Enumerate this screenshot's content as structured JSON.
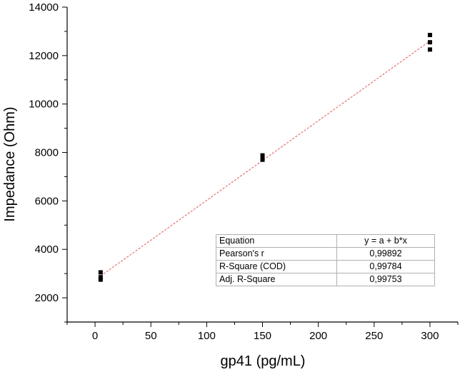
{
  "chart_data": {
    "type": "scatter",
    "xlabel": "gp41 (pg/mL)",
    "ylabel": "Impedance (Ohm)",
    "xlim": [
      -25,
      325
    ],
    "ylim": [
      1000,
      14000
    ],
    "xticks": [
      0,
      50,
      100,
      150,
      200,
      250,
      300
    ],
    "yticks": [
      2000,
      4000,
      6000,
      8000,
      10000,
      12000,
      14000
    ],
    "tick_labels": {
      "x": [
        "0",
        "50",
        "100",
        "150",
        "200",
        "250",
        "300"
      ],
      "y": [
        "2000",
        "4000",
        "6000",
        "8000",
        "10000",
        "12000",
        "14000"
      ]
    },
    "grid": false,
    "points": [
      {
        "x": 5,
        "y": 2750
      },
      {
        "x": 5,
        "y": 2850
      },
      {
        "x": 5,
        "y": 3050
      },
      {
        "x": 150,
        "y": 7700
      },
      {
        "x": 150,
        "y": 7800
      },
      {
        "x": 150,
        "y": 7880
      },
      {
        "x": 300,
        "y": 12250
      },
      {
        "x": 300,
        "y": 12550
      },
      {
        "x": 300,
        "y": 12850
      }
    ],
    "fit_line": {
      "x": [
        5,
        300
      ],
      "y": [
        2900,
        12600
      ],
      "color": "#e05555",
      "style": "dashed"
    },
    "marker_color": "#000000",
    "stats_table": {
      "rows": [
        {
          "key": "Equation",
          "value": "y = a + b*x"
        },
        {
          "key": "Pearson's r",
          "value": "0,99892"
        },
        {
          "key": "R-Square (COD)",
          "value": "0,99784"
        },
        {
          "key": "Adj. R-Square",
          "value": "0,99753"
        }
      ]
    }
  }
}
